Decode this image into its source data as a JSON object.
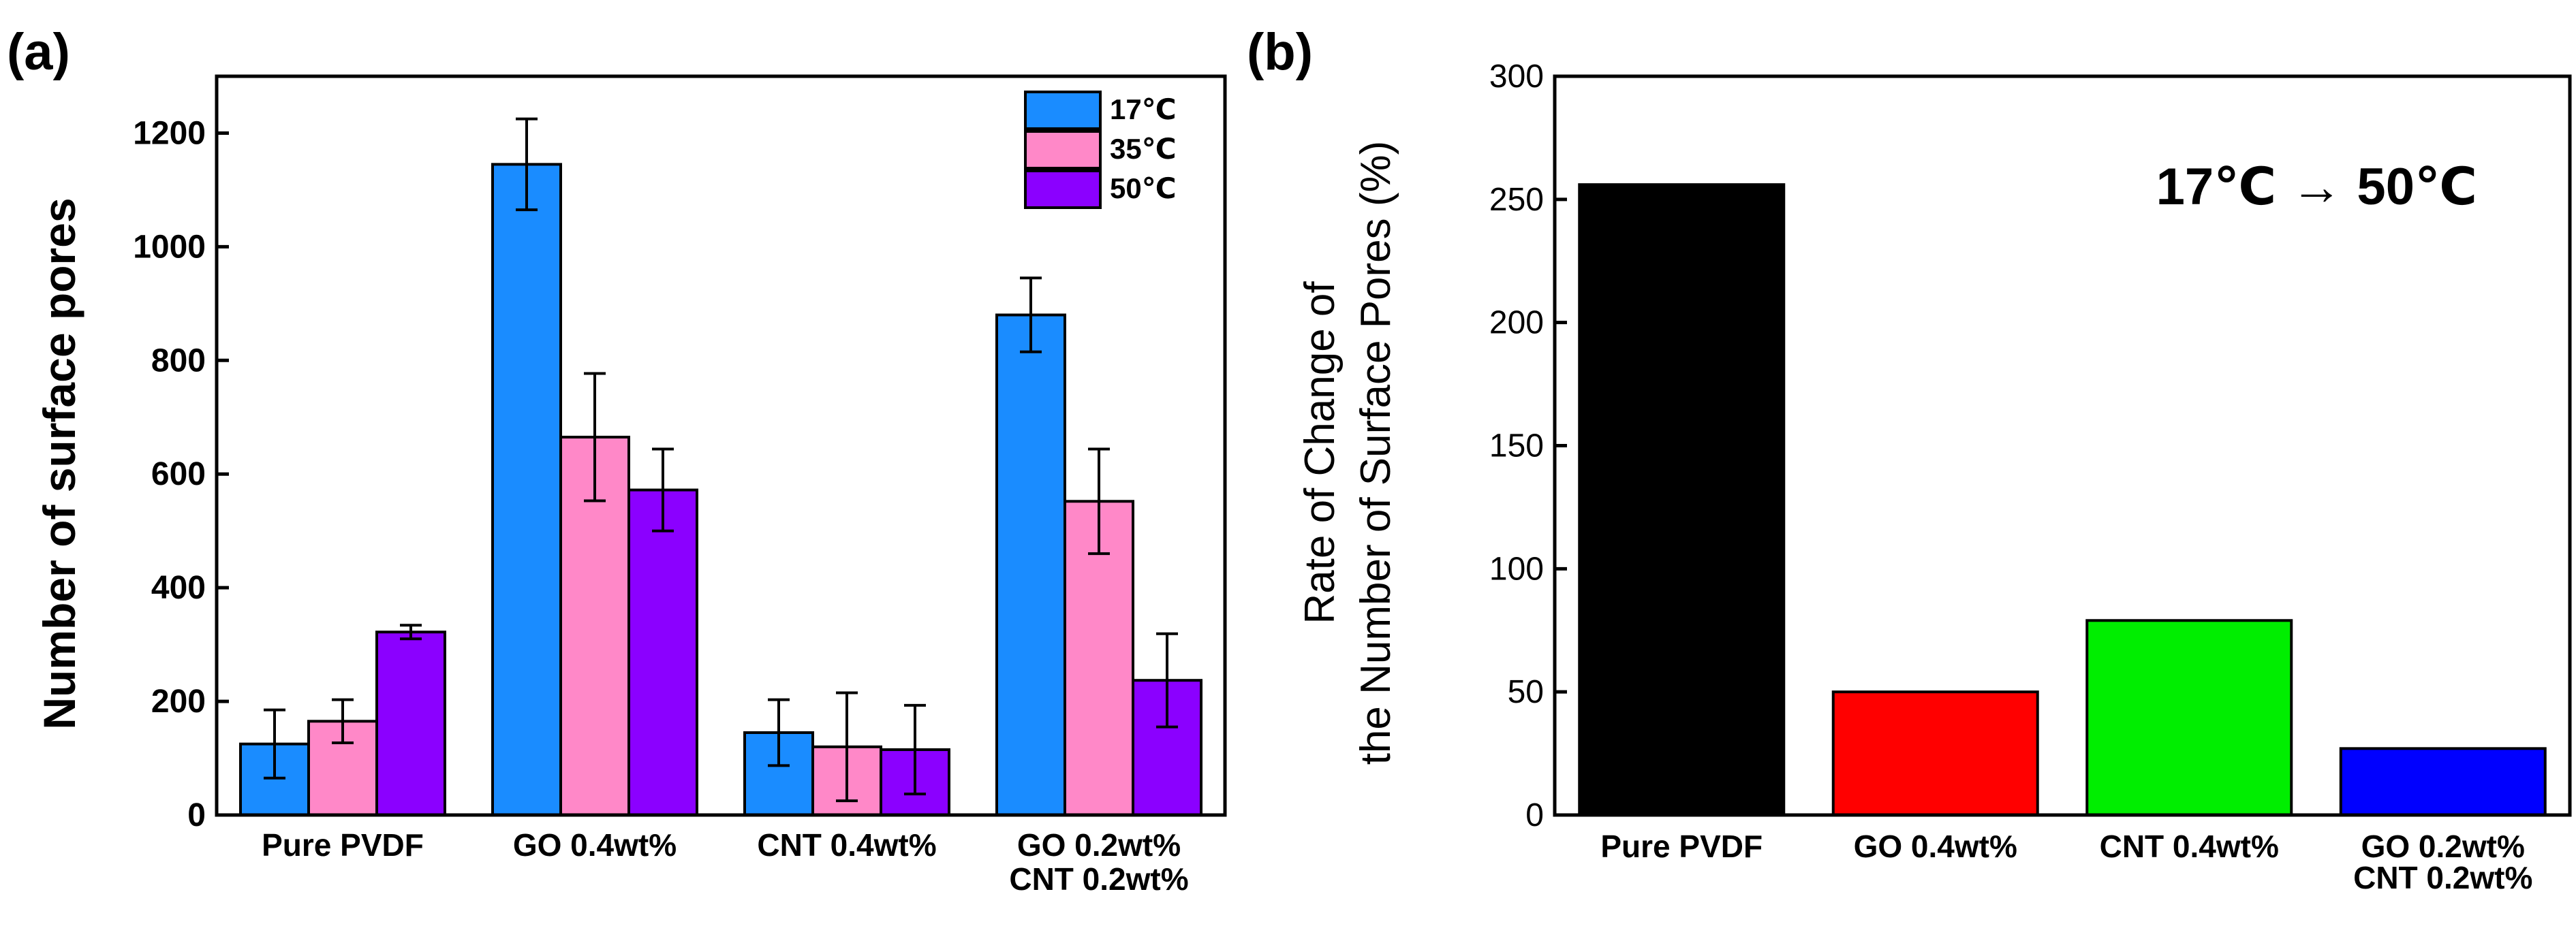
{
  "chart_data": [
    {
      "panel": "(a)",
      "type": "bar",
      "title": "",
      "xlabel": "",
      "ylabel": "Number of surface pores",
      "ylim": [
        0,
        1300
      ],
      "yticks": [
        0,
        200,
        400,
        600,
        800,
        1000,
        1200
      ],
      "categories": [
        [
          "Pure PVDF"
        ],
        [
          "GO 0.4wt%"
        ],
        [
          "CNT 0.4wt%"
        ],
        [
          "GO 0.2wt%",
          "CNT 0.2wt%"
        ]
      ],
      "series": [
        {
          "name": "17℃",
          "color": "#1a8cff",
          "values": [
            125,
            1145,
            145,
            880
          ],
          "errors": [
            60,
            80,
            58,
            65
          ]
        },
        {
          "name": "35℃",
          "color": "#ff88c8",
          "values": [
            165,
            665,
            120,
            552
          ],
          "errors": [
            38,
            112,
            95,
            92
          ]
        },
        {
          "name": "50℃",
          "color": "#8b00ff",
          "values": [
            322,
            572,
            115,
            237
          ],
          "errors": [
            12,
            72,
            78,
            82
          ]
        }
      ],
      "legend_position": "top-right",
      "grid": false
    },
    {
      "panel": "(b)",
      "type": "bar",
      "title": "",
      "xlabel": "",
      "ylabel_lines": [
        "Rate of Change of",
        "the Number of Surface Pores (%)"
      ],
      "ylim": [
        0,
        300
      ],
      "yticks": [
        0,
        50,
        100,
        150,
        200,
        250,
        300
      ],
      "categories": [
        [
          "Pure PVDF"
        ],
        [
          "GO 0.4wt%"
        ],
        [
          "CNT 0.4wt%"
        ],
        [
          "GO 0.2wt%",
          "CNT 0.2wt%"
        ]
      ],
      "values": [
        256,
        50,
        79,
        27
      ],
      "colors": [
        "#000000",
        "#ff0000",
        "#00ee00",
        "#0000ff"
      ],
      "annotation": "17℃ → 50℃",
      "grid": false
    }
  ]
}
